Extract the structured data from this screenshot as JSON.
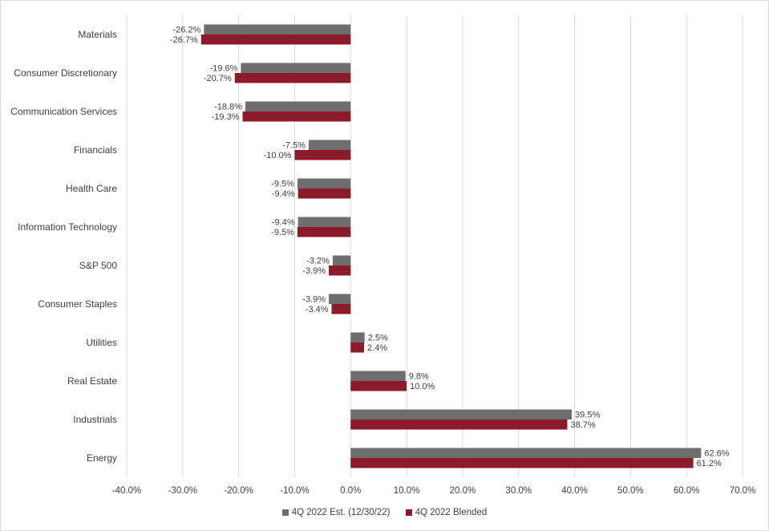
{
  "chart_data": {
    "type": "bar",
    "orientation": "horizontal",
    "categories": [
      "Materials",
      "Consumer Discretionary",
      "Communication Services",
      "Financials",
      "Health Care",
      "Information Technology",
      "S&P 500",
      "Consumer Staples",
      "Utilities",
      "Real Estate",
      "Industrials",
      "Energy"
    ],
    "series": [
      {
        "name": "4Q 2022 Est. (12/30/22)",
        "color": "#6e6e6e",
        "values": [
          -26.2,
          -19.6,
          -18.8,
          -7.5,
          -9.5,
          -9.4,
          -3.2,
          -3.9,
          2.5,
          9.8,
          39.5,
          62.6
        ],
        "labels": [
          "-26.2%",
          "-19.6%",
          "-18.8%",
          "-7.5%",
          "-9.5%",
          "-9.4%",
          "-3.2%",
          "-3.9%",
          "2.5%",
          "9.8%",
          "39.5%",
          "62.6%"
        ]
      },
      {
        "name": "4Q 2022 Blended",
        "color": "#8b1a2b",
        "values": [
          -26.7,
          -20.7,
          -19.3,
          -10.0,
          -9.4,
          -9.5,
          -3.9,
          -3.4,
          2.4,
          10.0,
          38.7,
          61.2
        ],
        "labels": [
          "-26.7%",
          "-20.7%",
          "-19.3%",
          "-10.0%",
          "-9.4%",
          "-9.5%",
          "-3.9%",
          "-3.4%",
          "2.4%",
          "10.0%",
          "38.7%",
          "61.2%"
        ]
      }
    ],
    "xlim": [
      -40,
      70
    ],
    "xticks": [
      -40,
      -30,
      -20,
      -10,
      0,
      10,
      20,
      30,
      40,
      50,
      60,
      70
    ],
    "xtick_labels": [
      "-40.0%",
      "-30.0%",
      "-20.0%",
      "-10.0%",
      "0.0%",
      "10.0%",
      "20.0%",
      "30.0%",
      "40.0%",
      "50.0%",
      "60.0%",
      "70.0%"
    ],
    "title": "",
    "xlabel": "",
    "ylabel": "",
    "grid": "vertical",
    "legend": "bottom"
  }
}
